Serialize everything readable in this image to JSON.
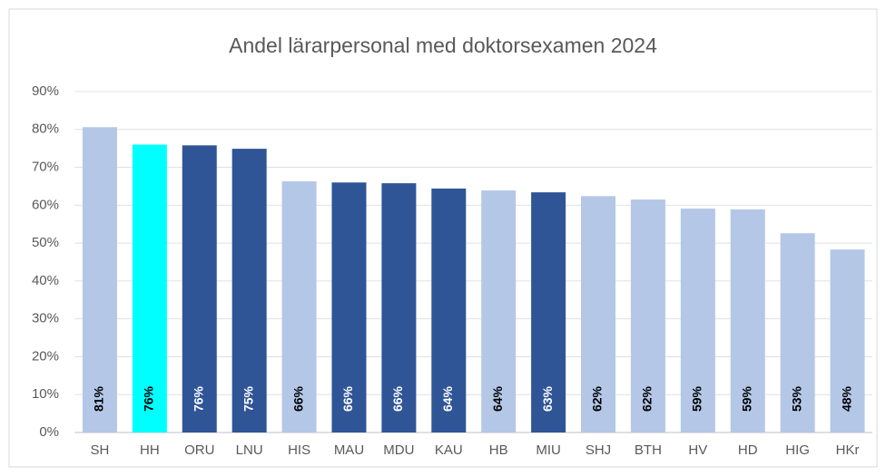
{
  "chart_data": {
    "type": "bar",
    "title": "Andel lärarpersonal med doktorsexamen 2024",
    "categories": [
      "SH",
      "HH",
      "ORU",
      "LNU",
      "HIS",
      "MAU",
      "MDU",
      "KAU",
      "HB",
      "MIU",
      "SHJ",
      "BTH",
      "HV",
      "HD",
      "HIG",
      "HKr"
    ],
    "values": [
      80.6,
      76,
      75.8,
      74.9,
      66.3,
      66,
      65.8,
      64.4,
      63.9,
      63.4,
      62.4,
      61.5,
      59.1,
      58.9,
      52.6,
      48.3
    ],
    "value_labels": [
      "81%",
      "76%",
      "76%",
      "75%",
      "66%",
      "66%",
      "66%",
      "64%",
      "64%",
      "63%",
      "62%",
      "62%",
      "59%",
      "59%",
      "53%",
      "48%"
    ],
    "colors": [
      "#b4c7e7",
      "#00ffff",
      "#2f5597",
      "#2f5597",
      "#b4c7e7",
      "#2f5597",
      "#2f5597",
      "#2f5597",
      "#b4c7e7",
      "#2f5597",
      "#b4c7e7",
      "#b4c7e7",
      "#b4c7e7",
      "#b4c7e7",
      "#b4c7e7",
      "#b4c7e7"
    ],
    "ylim": [
      0,
      90
    ],
    "yticks": [
      {
        "value": 0,
        "label": "0%"
      },
      {
        "value": 10,
        "label": "10%"
      },
      {
        "value": 20,
        "label": "20%"
      },
      {
        "value": 30,
        "label": "30%"
      },
      {
        "value": 40,
        "label": "40%"
      },
      {
        "value": 50,
        "label": "50%"
      },
      {
        "value": 60,
        "label": "60%"
      },
      {
        "value": 70,
        "label": "70%"
      },
      {
        "value": 80,
        "label": "80%"
      },
      {
        "value": 90,
        "label": "90%"
      }
    ],
    "grid": true
  }
}
